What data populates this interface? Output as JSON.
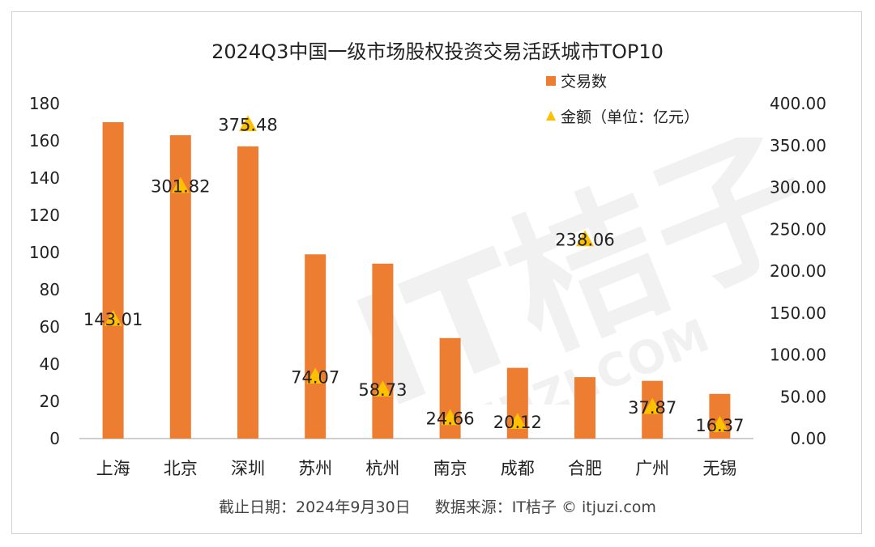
{
  "title": "2024Q3中国一级市场股权投资交易活跃城市TOP10",
  "footer": {
    "date": "截止日期：2024年9月30日",
    "source": "数据来源：IT桔子 © itjuzi.com"
  },
  "watermark": {
    "brand": "IT桔子",
    "url": "ITJUZI.COM"
  },
  "colors": {
    "bar": "#ED7D31",
    "marker": "#FFC000",
    "axis": "#bfbfbf"
  },
  "chart_data": {
    "type": "bar",
    "title": "2024Q3中国一级市场股权投资交易活跃城市TOP10",
    "categories": [
      "上海",
      "北京",
      "深圳",
      "苏州",
      "杭州",
      "南京",
      "成都",
      "合肥",
      "广州",
      "无锡"
    ],
    "series": [
      {
        "name": "交易数",
        "type": "bar",
        "axis": "left",
        "values": [
          170,
          163,
          157,
          99,
          94,
          54,
          38,
          33,
          31,
          24
        ]
      },
      {
        "name": "金额（单位：亿元）",
        "type": "marker",
        "axis": "right",
        "values": [
          143.01,
          301.82,
          375.48,
          74.07,
          58.73,
          24.66,
          20.12,
          238.06,
          37.87,
          16.37
        ],
        "labels": [
          "143.01",
          "301.82",
          "375.48",
          "74.07",
          "58.73",
          "24.66",
          "20.12",
          "238.06",
          "37.87",
          "16.37"
        ],
        "marker": "triangle"
      }
    ],
    "y_left": {
      "range": [
        0,
        180
      ],
      "ticks": [
        "0",
        "20",
        "40",
        "60",
        "80",
        "100",
        "120",
        "140",
        "160",
        "180"
      ]
    },
    "y_right": {
      "range": [
        0,
        400
      ],
      "ticks": [
        "0.00",
        "50.00",
        "100.00",
        "150.00",
        "200.00",
        "250.00",
        "300.00",
        "350.00",
        "400.00"
      ]
    },
    "grid": false,
    "legend_position": "top-right"
  }
}
